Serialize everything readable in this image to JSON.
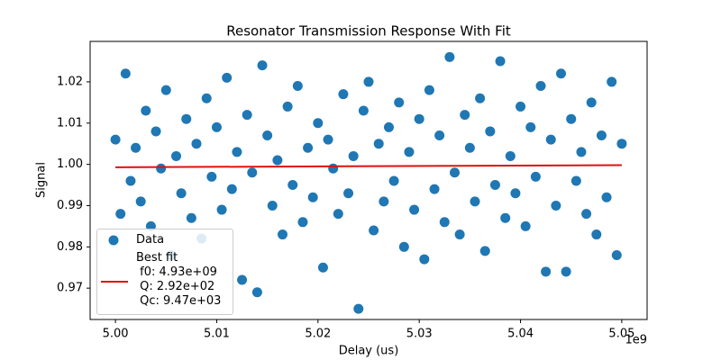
{
  "chart_data": {
    "type": "scatter",
    "title": "Resonator Transmission Response With Fit",
    "xlabel": "Delay (us)",
    "ylabel": "Signal",
    "x_offset_label": "1e9",
    "xlim": [
      4997500000,
      5052500000
    ],
    "ylim": [
      0.9624,
      1.0298
    ],
    "xticks": [
      {
        "value": 5000000000,
        "label": "5.00"
      },
      {
        "value": 5010000000,
        "label": "5.01"
      },
      {
        "value": 5020000000,
        "label": "5.02"
      },
      {
        "value": 5030000000,
        "label": "5.03"
      },
      {
        "value": 5040000000,
        "label": "5.04"
      },
      {
        "value": 5050000000,
        "label": "5.05"
      }
    ],
    "yticks": [
      0.97,
      0.98,
      0.99,
      {
        "value": 1,
        "label": "1.00"
      },
      1.01,
      1.02
    ],
    "legend": "lower left",
    "series": [
      {
        "name": "Data",
        "type": "scatter",
        "color": "#1f77b4",
        "x": [
          5000000000,
          5000500000,
          5001000000,
          5001500000,
          5002000000,
          5002500000,
          5003000000,
          5003500000,
          5004000000,
          5004500000,
          5005000000,
          5005500000,
          5006000000,
          5006500000,
          5007000000,
          5007500000,
          5008000000,
          5008500000,
          5009000000,
          5009500000,
          5010000000,
          5010500000,
          5011000000,
          5011500000,
          5012000000,
          5012500000,
          5013000000,
          5013500000,
          5014000000,
          5014500000,
          5015000000,
          5015500000,
          5016000000,
          5016500000,
          5017000000,
          5017500000,
          5018000000,
          5018500000,
          5019000000,
          5019500000,
          5020000000,
          5020500000,
          5021000000,
          5021500000,
          5022000000,
          5022500000,
          5023000000,
          5023500000,
          5024000000,
          5024500000,
          5025000000,
          5025500000,
          5026000000,
          5026500000,
          5027000000,
          5027500000,
          5028000000,
          5028500000,
          5029000000,
          5029500000,
          5030000000,
          5030500000,
          5031000000,
          5031500000,
          5032000000,
          5032500000,
          5033000000,
          5033500000,
          5034000000,
          5034500000,
          5035000000,
          5035500000,
          5036000000,
          5036500000,
          5037000000,
          5037500000,
          5038000000,
          5038500000,
          5039000000,
          5039500000,
          5040000000,
          5040500000,
          5041000000,
          5041500000,
          5042000000,
          5042500000,
          5043000000,
          5043500000,
          5044000000,
          5044500000,
          5045000000,
          5045500000,
          5046000000,
          5046500000,
          5047000000,
          5047500000,
          5048000000,
          5048500000,
          5049000000,
          5049500000,
          5050000000
        ],
        "values": [
          1.006,
          0.988,
          1.022,
          0.996,
          1.004,
          0.991,
          1.013,
          0.985,
          1.008,
          0.999,
          1.018,
          0.978,
          1.002,
          0.993,
          1.011,
          0.987,
          1.005,
          0.982,
          1.016,
          0.997,
          1.009,
          0.989,
          1.021,
          0.994,
          1.003,
          0.972,
          1.012,
          0.998,
          0.969,
          1.024,
          1.007,
          0.99,
          1.001,
          0.983,
          1.014,
          0.995,
          1.019,
          0.986,
          1.004,
          0.992,
          1.01,
          0.975,
          1.006,
          0.999,
          0.988,
          1.017,
          0.993,
          1.002,
          0.965,
          1.013,
          1.02,
          0.984,
          1.005,
          0.991,
          1.009,
          0.996,
          1.015,
          0.98,
          1.003,
          0.989,
          1.011,
          0.977,
          1.018,
          0.994,
          1.007,
          0.986,
          1.026,
          0.998,
          0.983,
          1.012,
          1.004,
          0.991,
          1.016,
          0.979,
          1.008,
          0.995,
          1.025,
          0.987,
          1.002,
          0.993,
          1.014,
          0.985,
          1.009,
          0.997,
          1.019,
          0.974,
          1.006,
          0.99,
          1.022,
          0.974,
          1.011,
          0.996,
          1.003,
          0.988,
          1.015,
          0.983,
          1.007,
          0.992,
          1.02,
          0.978,
          1.005
        ]
      },
      {
        "name": "Best fit\n f0: 4.93e+09\n Q: 2.92e+02\n Qc: 9.47e+03",
        "type": "line",
        "color": "#e01010",
        "x": [
          5000000000,
          5050000000
        ],
        "values": [
          0.9993,
          0.9998
        ]
      }
    ]
  }
}
